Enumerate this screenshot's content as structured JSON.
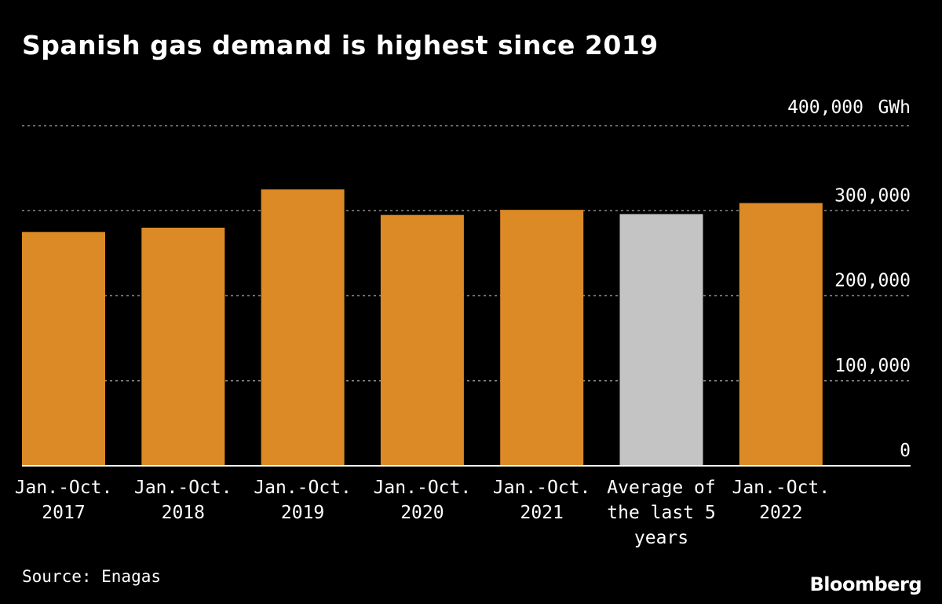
{
  "header": {
    "title": "Spanish gas demand is highest since 2019"
  },
  "footer": {
    "source": "Source: Enagas",
    "logo": "Bloomberg"
  },
  "colors": {
    "primary": "#DC8A26",
    "highlight": "#C4C4C4",
    "background": "#000000",
    "text": "#FFFFFF",
    "grid": "#8A8A8A"
  },
  "chart_data": {
    "type": "bar",
    "title": "Spanish gas demand is highest since 2019",
    "unit": "GWh",
    "categories": [
      [
        "Jan.-Oct.",
        "2017"
      ],
      [
        "Jan.-Oct.",
        "2018"
      ],
      [
        "Jan.-Oct.",
        "2019"
      ],
      [
        "Jan.-Oct.",
        "2020"
      ],
      [
        "Jan.-Oct.",
        "2021"
      ],
      [
        "Average of",
        "the last 5",
        "years"
      ],
      [
        "Jan.-Oct.",
        "2022"
      ]
    ],
    "values": [
      275000,
      280000,
      325000,
      295000,
      301000,
      296000,
      309000
    ],
    "bar_colors": [
      "primary",
      "primary",
      "primary",
      "primary",
      "primary",
      "highlight",
      "primary"
    ],
    "yticks": [
      0,
      100000,
      200000,
      300000,
      400000
    ],
    "ytick_labels": [
      "0",
      "100,000",
      "200,000",
      "300,000",
      "400,000"
    ],
    "ylim": [
      0,
      400000
    ],
    "grid": true
  }
}
